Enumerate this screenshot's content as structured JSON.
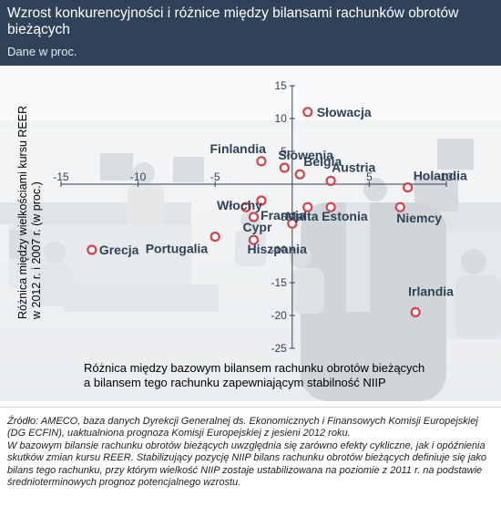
{
  "header": {
    "title": "Wzrost konkurencyjności i różnice między bilansami rachunków obrotów bieżących",
    "subtitle": "Dane w proc."
  },
  "chart_data": {
    "type": "scatter",
    "xlim": [
      -15,
      10
    ],
    "ylim": [
      -25,
      15
    ],
    "xticks": [
      -15,
      -10,
      -5,
      5,
      10
    ],
    "yticks": [
      15,
      10,
      5,
      -5,
      -10,
      -15,
      -20,
      -25
    ],
    "ylabel_lines": [
      "Różnica między wielkościami kursu REER",
      "w 2012 r. i 2007 r. (w proc.)"
    ],
    "xlabel_lines": [
      "Różnica między bazowym bilansem rachunku obrotów bieżących",
      "a bilansem tego rachunku zapewniającym stabilność NIIP"
    ],
    "grid": false,
    "marker_color": "#d6404a",
    "points": [
      {
        "name": "Słowacja",
        "x": 1.0,
        "y": 11.0
      },
      {
        "name": "Finlandia",
        "x": -2.0,
        "y": 3.5
      },
      {
        "name": "Słowenia",
        "x": -0.5,
        "y": 2.5
      },
      {
        "name": "Belgia",
        "x": 0.5,
        "y": 1.5
      },
      {
        "name": "Austria",
        "x": 2.5,
        "y": 0.5
      },
      {
        "name": "Holandia",
        "x": 7.5,
        "y": -0.5
      },
      {
        "name": "Włochy",
        "x": -2.0,
        "y": -2.5
      },
      {
        "name": "Francja",
        "x": -3.0,
        "y": -3.5
      },
      {
        "name": "Malta",
        "x": 1.0,
        "y": -3.5
      },
      {
        "name": "Estonia",
        "x": 2.5,
        "y": -3.5
      },
      {
        "name": "Niemcy",
        "x": 7.0,
        "y": -3.5
      },
      {
        "name": "Cypr",
        "x": -2.5,
        "y": -5.0
      },
      {
        "name": "Hiszpania",
        "x": 0.0,
        "y": -6.0
      },
      {
        "name": "Grecja",
        "x": -13.0,
        "y": -10.0
      },
      {
        "name": "Portugalia",
        "x": -5.0,
        "y": -8.0
      },
      {
        "name": "Hiszpania",
        "x": -2.5,
        "y": -8.5
      },
      {
        "name": "Irlandia",
        "x": 8.0,
        "y": -19.5
      }
    ],
    "label_text": {
      "Słowacja": "Słowacja",
      "Finlandia": "Finlandia",
      "Słowenia": "Słowenia",
      "Belgia": "Belgia",
      "Austria": "Austria",
      "Holandia": "Holandia",
      "Włochy": "Włochy",
      "Francja": "Francja",
      "Malta": "Malta",
      "Estonia": "Estonia",
      "Niemcy": "Niemcy",
      "Cypr": "Cypr",
      "Hiszpania": "Hiszpania",
      "Grecja": "Grecja",
      "Portugalia": "Portugalia",
      "Irlandia": "Irlandia"
    }
  },
  "source": {
    "p1": "Źródło: AMECO, baza danych Dyrekcji Generalnej ds. Ekonomicznych i Finansowych Komisji Europejskiej (DG ECFIN), uaktualniona prognoza Komisji Europejskiej z jesieni 2012 roku.",
    "p2": "W bazowym bilansie rachunku obrotów bieżących uwzględnia się zarówno efekty cykliczne, jak i opóźnienia skutków zmian kursu REER. Stabilizujący pozycję NIIP bilans rachunku obrotów bieżących definiuje się jako bilans tego rachunku, przy którym wielkość NIIP zostaje ustabilizowana na poziomie z 2011 r. na podstawie średnioterminowych prognoz potencjalnego wzrostu."
  }
}
